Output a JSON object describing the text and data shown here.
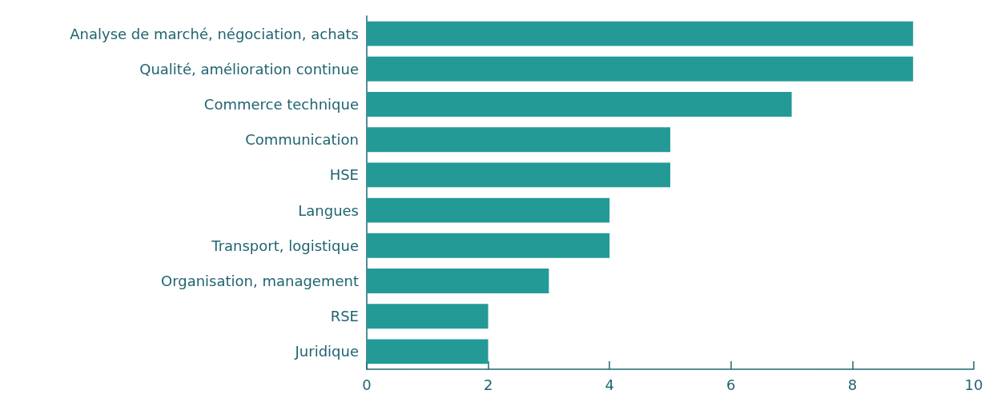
{
  "chart_data": {
    "type": "bar",
    "orientation": "horizontal",
    "categories": [
      "Analyse de marché, négociation, achats",
      "Qualité, amélioration continue",
      "Commerce technique",
      "Communication",
      "HSE",
      "Langues",
      "Transport, logistique",
      "Organisation, management",
      "RSE",
      "Juridique"
    ],
    "values": [
      9,
      9,
      7,
      5,
      5,
      4,
      4,
      3,
      2,
      2
    ],
    "color": "#239a96",
    "xlim": [
      0,
      10
    ],
    "xticks": [
      0,
      2,
      4,
      6,
      8,
      10
    ],
    "grid": false
  }
}
